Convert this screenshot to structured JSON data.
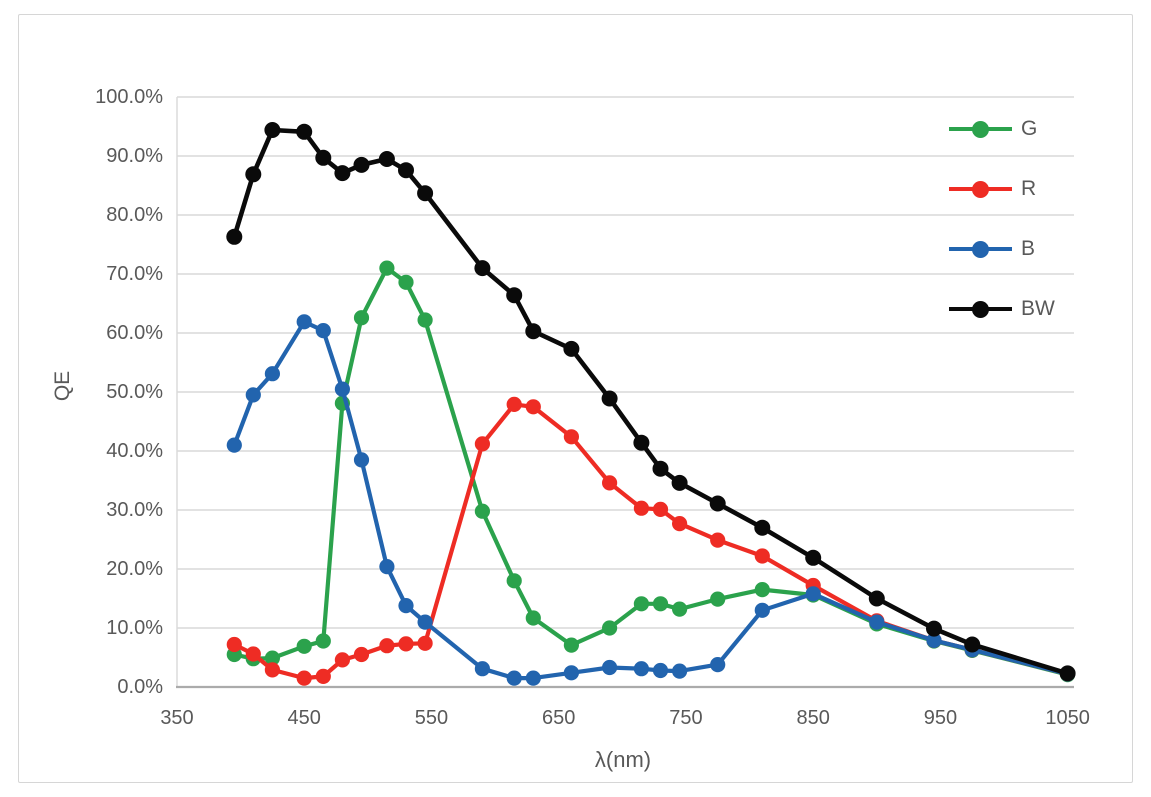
{
  "chart_data": {
    "type": "line",
    "title": "",
    "xlabel": "λ(nm)",
    "ylabel": "QE",
    "grid": "horizontal",
    "legend_position": "top-right",
    "xlim": [
      350,
      1055
    ],
    "ylim": [
      0,
      100
    ],
    "x_ticks": {
      "values": [
        350,
        450,
        550,
        650,
        750,
        850,
        950,
        1050
      ],
      "labels": [
        "350",
        "450",
        "550",
        "650",
        "750",
        "850",
        "950",
        "1050"
      ]
    },
    "y_ticks": {
      "values": [
        0,
        10,
        20,
        30,
        40,
        50,
        60,
        70,
        80,
        90,
        100
      ],
      "labels": [
        "0.0%",
        "10.0%",
        "20.0%",
        "30.0%",
        "40.0%",
        "50.0%",
        "60.0%",
        "70.0%",
        "80.0%",
        "90.0%",
        "100.0%"
      ]
    },
    "x": [
      395,
      410,
      425,
      450,
      465,
      480,
      495,
      515,
      530,
      545,
      590,
      615,
      630,
      660,
      690,
      715,
      730,
      745,
      775,
      810,
      850,
      900,
      945,
      975,
      1050
    ],
    "series": [
      {
        "name": "G",
        "color": "#2BA24C",
        "values": [
          5.5,
          4.8,
          4.9,
          6.9,
          7.8,
          48.1,
          62.6,
          71.0,
          68.6,
          62.2,
          29.8,
          18.0,
          11.7,
          7.1,
          10.0,
          14.1,
          14.1,
          13.2,
          14.9,
          16.5,
          15.6,
          10.7,
          7.8,
          6.2,
          2.1
        ]
      },
      {
        "name": "R",
        "color": "#EE2C24",
        "values": [
          7.2,
          5.6,
          2.9,
          1.5,
          1.8,
          4.6,
          5.5,
          7.0,
          7.3,
          7.4,
          41.2,
          47.9,
          47.5,
          42.4,
          34.6,
          30.3,
          30.1,
          27.7,
          24.9,
          22.2,
          17.2,
          11.2,
          7.9,
          6.3,
          2.2
        ]
      },
      {
        "name": "B",
        "color": "#2264AE",
        "values": [
          41.0,
          49.5,
          53.1,
          61.9,
          60.4,
          50.5,
          38.5,
          20.4,
          13.8,
          11.0,
          3.1,
          1.5,
          1.5,
          2.4,
          3.3,
          3.1,
          2.8,
          2.7,
          3.8,
          13.0,
          15.8,
          11.0,
          7.9,
          6.3,
          2.2
        ]
      },
      {
        "name": "BW",
        "color": "#0A0A0A",
        "values": [
          76.3,
          86.9,
          94.4,
          94.1,
          89.7,
          87.1,
          88.5,
          89.5,
          87.6,
          83.7,
          71.0,
          66.4,
          60.3,
          57.3,
          48.9,
          41.4,
          37.0,
          34.6,
          31.1,
          27.0,
          21.9,
          15.0,
          9.9,
          7.2,
          2.3
        ]
      }
    ],
    "style": {
      "gridline_color": "#D9D9D9",
      "axis_line_color": "#ABABAB",
      "tick_label_color": "#595959"
    }
  }
}
